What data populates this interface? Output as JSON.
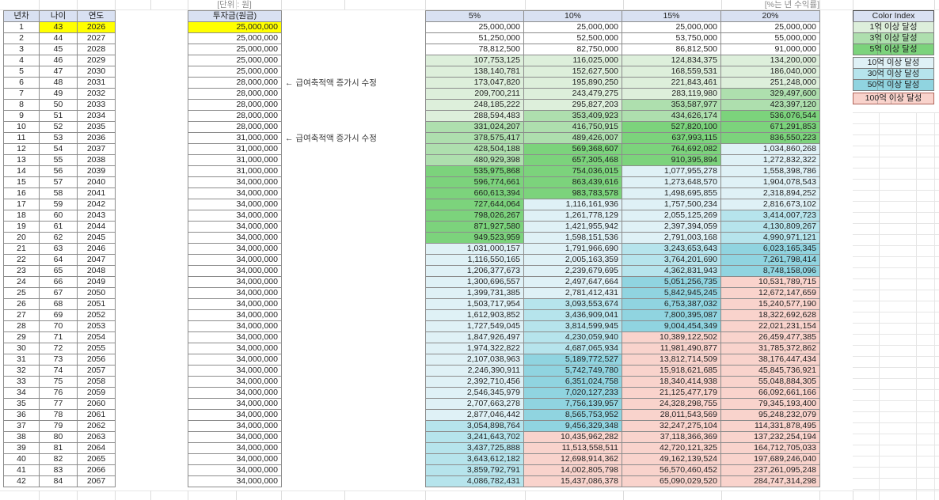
{
  "meta": {
    "unit_label": "[단위 : 원]",
    "rate_note_label": "[%는 년 수익률]",
    "annotations": [
      {
        "row": 6,
        "text": "← 급여축적액 증가시 수정"
      },
      {
        "row": 11,
        "text": "← 급여축적액 증가시 수정"
      }
    ]
  },
  "colors": {
    "header_bg": "#d9e1f2",
    "highlight": "#ffff00",
    "default_cell": "#ffffff"
  },
  "left_table": {
    "headers": [
      "년차",
      "나이",
      "연도"
    ],
    "highlight": {
      "row": 1,
      "cols": [
        1,
        2
      ]
    },
    "rows": [
      [
        1,
        43,
        2026
      ],
      [
        2,
        44,
        2027
      ],
      [
        3,
        45,
        2028
      ],
      [
        4,
        46,
        2029
      ],
      [
        5,
        47,
        2030
      ],
      [
        6,
        48,
        2031
      ],
      [
        7,
        49,
        2032
      ],
      [
        8,
        50,
        2033
      ],
      [
        9,
        51,
        2034
      ],
      [
        10,
        52,
        2035
      ],
      [
        11,
        53,
        2036
      ],
      [
        12,
        54,
        2037
      ],
      [
        13,
        55,
        2038
      ],
      [
        14,
        56,
        2039
      ],
      [
        15,
        57,
        2040
      ],
      [
        16,
        58,
        2041
      ],
      [
        17,
        59,
        2042
      ],
      [
        18,
        60,
        2043
      ],
      [
        19,
        61,
        2044
      ],
      [
        20,
        62,
        2045
      ],
      [
        21,
        63,
        2046
      ],
      [
        22,
        64,
        2047
      ],
      [
        23,
        65,
        2048
      ],
      [
        24,
        66,
        2049
      ],
      [
        25,
        67,
        2050
      ],
      [
        26,
        68,
        2051
      ],
      [
        27,
        69,
        2052
      ],
      [
        28,
        70,
        2053
      ],
      [
        29,
        71,
        2054
      ],
      [
        30,
        72,
        2055
      ],
      [
        31,
        73,
        2056
      ],
      [
        32,
        74,
        2057
      ],
      [
        33,
        75,
        2058
      ],
      [
        34,
        76,
        2059
      ],
      [
        35,
        77,
        2060
      ],
      [
        36,
        78,
        2061
      ],
      [
        37,
        79,
        2062
      ],
      [
        38,
        80,
        2063
      ],
      [
        39,
        81,
        2064
      ],
      [
        40,
        82,
        2065
      ],
      [
        41,
        83,
        2066
      ],
      [
        42,
        84,
        2067
      ]
    ]
  },
  "invest_table": {
    "header": "투자금(원금)",
    "highlight_row": 1,
    "values": [
      "25,000,000",
      "25,000,000",
      "25,000,000",
      "25,000,000",
      "25,000,000",
      "28,000,000",
      "28,000,000",
      "28,000,000",
      "28,000,000",
      "28,000,000",
      "31,000,000",
      "31,000,000",
      "31,000,000",
      "31,000,000",
      "34,000,000",
      "34,000,000",
      "34,000,000",
      "34,000,000",
      "34,000,000",
      "34,000,000",
      "34,000,000",
      "34,000,000",
      "34,000,000",
      "34,000,000",
      "34,000,000",
      "34,000,000",
      "34,000,000",
      "34,000,000",
      "34,000,000",
      "34,000,000",
      "34,000,000",
      "34,000,000",
      "34,000,000",
      "34,000,000",
      "34,000,000",
      "34,000,000",
      "34,000,000",
      "34,000,000",
      "34,000,000",
      "34,000,000",
      "34,000,000",
      "34,000,000"
    ]
  },
  "returns_table": {
    "headers": [
      "5%",
      "10%",
      "15%",
      "20%"
    ],
    "rows": [
      [
        "25,000,000",
        "25,000,000",
        "25,000,000",
        "25,000,000"
      ],
      [
        "51,250,000",
        "52,500,000",
        "53,750,000",
        "55,000,000"
      ],
      [
        "78,812,500",
        "82,750,000",
        "86,812,500",
        "91,000,000"
      ],
      [
        "107,753,125",
        "116,025,000",
        "124,834,375",
        "134,200,000"
      ],
      [
        "138,140,781",
        "152,627,500",
        "168,559,531",
        "186,040,000"
      ],
      [
        "173,047,820",
        "195,890,250",
        "221,843,461",
        "251,248,000"
      ],
      [
        "209,700,211",
        "243,479,275",
        "283,119,980",
        "329,497,600"
      ],
      [
        "248,185,222",
        "295,827,203",
        "353,587,977",
        "423,397,120"
      ],
      [
        "288,594,483",
        "353,409,923",
        "434,626,174",
        "536,076,544"
      ],
      [
        "331,024,207",
        "416,750,915",
        "527,820,100",
        "671,291,853"
      ],
      [
        "378,575,417",
        "489,426,007",
        "637,993,115",
        "836,550,223"
      ],
      [
        "428,504,188",
        "569,368,607",
        "764,692,082",
        "1,034,860,268"
      ],
      [
        "480,929,398",
        "657,305,468",
        "910,395,894",
        "1,272,832,322"
      ],
      [
        "535,975,868",
        "754,036,015",
        "1,077,955,278",
        "1,558,398,786"
      ],
      [
        "596,774,661",
        "863,439,616",
        "1,273,648,570",
        "1,904,078,543"
      ],
      [
        "660,613,394",
        "983,783,578",
        "1,498,695,855",
        "2,318,894,252"
      ],
      [
        "727,644,064",
        "1,116,161,936",
        "1,757,500,234",
        "2,816,673,102"
      ],
      [
        "798,026,267",
        "1,261,778,129",
        "2,055,125,269",
        "3,414,007,723"
      ],
      [
        "871,927,580",
        "1,421,955,942",
        "2,397,394,059",
        "4,130,809,267"
      ],
      [
        "949,523,959",
        "1,598,151,536",
        "2,791,003,168",
        "4,990,971,121"
      ],
      [
        "1,031,000,157",
        "1,791,966,690",
        "3,243,653,643",
        "6,023,165,345"
      ],
      [
        "1,116,550,165",
        "2,005,163,359",
        "3,764,201,690",
        "7,261,798,414"
      ],
      [
        "1,206,377,673",
        "2,239,679,695",
        "4,362,831,943",
        "8,748,158,096"
      ],
      [
        "1,300,696,557",
        "2,497,647,664",
        "5,051,256,735",
        "10,531,789,715"
      ],
      [
        "1,399,731,385",
        "2,781,412,431",
        "5,842,945,245",
        "12,672,147,659"
      ],
      [
        "1,503,717,954",
        "3,093,553,674",
        "6,753,387,032",
        "15,240,577,190"
      ],
      [
        "1,612,903,852",
        "3,436,909,041",
        "7,800,395,087",
        "18,322,692,628"
      ],
      [
        "1,727,549,045",
        "3,814,599,945",
        "9,004,454,349",
        "22,021,231,154"
      ],
      [
        "1,847,926,497",
        "4,230,059,940",
        "10,389,122,502",
        "26,459,477,385"
      ],
      [
        "1,974,322,822",
        "4,687,065,934",
        "11,981,490,877",
        "31,785,372,862"
      ],
      [
        "2,107,038,963",
        "5,189,772,527",
        "13,812,714,509",
        "38,176,447,434"
      ],
      [
        "2,246,390,911",
        "5,742,749,780",
        "15,918,621,685",
        "45,845,736,921"
      ],
      [
        "2,392,710,456",
        "6,351,024,758",
        "18,340,414,938",
        "55,048,884,305"
      ],
      [
        "2,546,345,979",
        "7,020,127,233",
        "21,125,477,179",
        "66,092,661,166"
      ],
      [
        "2,707,663,278",
        "7,756,139,957",
        "24,328,298,755",
        "79,345,193,400"
      ],
      [
        "2,877,046,442",
        "8,565,753,952",
        "28,011,543,569",
        "95,248,232,079"
      ],
      [
        "3,054,898,764",
        "9,456,329,348",
        "32,247,275,104",
        "114,331,878,495"
      ],
      [
        "3,241,643,702",
        "10,435,962,282",
        "37,118,366,369",
        "137,232,254,194"
      ],
      [
        "3,437,725,888",
        "11,513,558,511",
        "42,720,121,325",
        "164,712,705,033"
      ],
      [
        "3,643,612,182",
        "12,698,914,362",
        "49,162,139,524",
        "197,689,246,040"
      ],
      [
        "3,859,792,791",
        "14,002,805,798",
        "56,570,460,452",
        "237,261,095,248"
      ],
      [
        "4,086,782,431",
        "15,437,086,378",
        "65,090,029,520",
        "284,747,314,298"
      ]
    ]
  },
  "legend": {
    "title": "Color Index",
    "entries": [
      {
        "label": "1억 이상 달성",
        "color": "#ddefdb",
        "threshold": 100000000
      },
      {
        "label": "3억 이상 달성",
        "color": "#aedfae",
        "threshold": 300000000
      },
      {
        "label": "5억 이상 달성",
        "color": "#7cd37c",
        "threshold": 500000000
      },
      {
        "label": "10억 이상 달성",
        "color": "#dff1f6",
        "threshold": 1000000000
      },
      {
        "label": "30억 이상 달성",
        "color": "#b6e4ec",
        "threshold": 3000000000
      },
      {
        "label": "50억 이상 달성",
        "color": "#90d4e0",
        "threshold": 5000000000
      },
      {
        "label": "100억 이상 달성",
        "color": "#f9d3cc",
        "threshold": 10000000000,
        "border": "#b0645a"
      }
    ],
    "groups": [
      [
        0,
        1,
        2
      ],
      [
        3,
        4,
        5
      ],
      [
        6
      ]
    ]
  }
}
